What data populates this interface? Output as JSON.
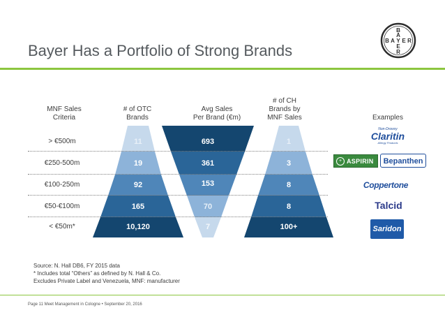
{
  "title": "Bayer Has a Portfolio of Strong Brands",
  "logo": {
    "letters": [
      "B",
      "A",
      "Y",
      "E",
      "R"
    ]
  },
  "headers": {
    "criteria": [
      "MNF Sales",
      "Criteria"
    ],
    "otc": [
      "# of OTC",
      "Brands"
    ],
    "avg": [
      "Avg Sales",
      "Per Brand (€m)"
    ],
    "ch": [
      "# of CH",
      "Brands by",
      "MNF Sales"
    ],
    "examples": "Examples"
  },
  "rows": [
    {
      "criteria": "> €500m",
      "otc": "11",
      "avg": "693",
      "ch": "1"
    },
    {
      "criteria": "€250-500m",
      "otc": "19",
      "avg": "361",
      "ch": "3"
    },
    {
      "criteria": "€100-250m",
      "otc": "92",
      "avg": "153",
      "ch": "8"
    },
    {
      "criteria": "€50-€100m",
      "otc": "165",
      "avg": "70",
      "ch": "8"
    },
    {
      "criteria": "< €50m*",
      "otc": "10,120",
      "avg": "7",
      "ch": "100+"
    }
  ],
  "brands": {
    "claritin": "Claritin",
    "claritin_top": "Non-Drowsy",
    "claritin_sub": "Allergy Products",
    "aspirin": "ASPIRIN",
    "bepanthen": "Bepanthen",
    "coppertone": "Coppertone",
    "talcid": "Talcid",
    "saridon": "Saridon"
  },
  "source": [
    "Source:  N. Hall DB6, FY 2015 data",
    "* Includes total “Others” as defined by N. Hall & Co.",
    "Excludes Private Label and Venezuela, MNF: manufacturer"
  ],
  "footer": "Page 11  Meet Management in Cologne • September 20, 2016",
  "colors": {
    "tier1": "#c6d9ec",
    "tier2": "#8db3d9",
    "tier3": "#4f86b9",
    "tier4": "#2a6598",
    "tier5": "#14466f",
    "accent": "#8cc63f"
  }
}
